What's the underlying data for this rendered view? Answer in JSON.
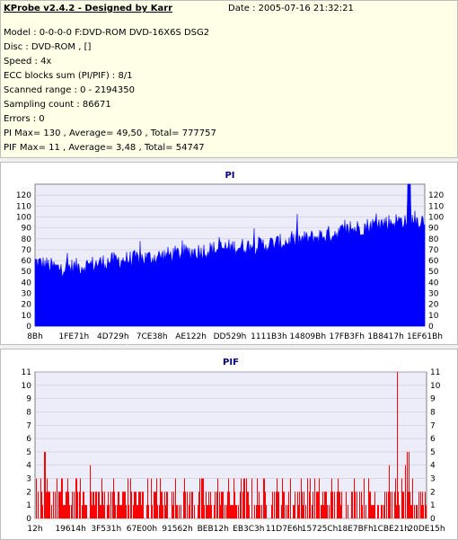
{
  "app": {
    "title": "KProbe v2.4.2 - Designed by Karr",
    "date": "Date : 2005-07-16 21:32:21"
  },
  "info": {
    "model": "Model : 0-0-0-0 F:DVD-ROM DVD-16X6S        DSG2",
    "disc": "Disc : DVD-ROM ,  []",
    "speed": "Speed : 4x",
    "ecc": "ECC blocks sum (PI/PIF) : 8/1",
    "range": "Scanned range : 0 - 2194350",
    "sampling": "Sampling count : 86671",
    "errors": "Errors : 0",
    "pi_stats": "PI Max= 130 , Average= 49,50 , Total= 777757",
    "pif_stats": "PIF Max= 11 , Average= 3,48 , Total= 54747"
  },
  "colors": {
    "pi_fill": "#0000ff",
    "pif_fill": "#ff0000",
    "plot_bg": "#ecedf8",
    "title_color": "#00007f"
  },
  "chart_data": [
    {
      "type": "area",
      "title": "PI",
      "y_ticks": [
        0,
        10,
        20,
        30,
        40,
        50,
        60,
        70,
        80,
        90,
        100,
        110,
        120
      ],
      "ylim": [
        0,
        130
      ],
      "x_tick_labels": [
        "8Bh",
        "1FE71h",
        "4D729h",
        "7CE38h",
        "AE122h",
        "DD529h",
        "1111B3h",
        "14809Bh",
        "17FB3Fh",
        "1B8417h",
        "1EF61Bh"
      ],
      "grid": true,
      "series": [
        {
          "profile_fraction": [
            0,
            0.06,
            0.12,
            0.2,
            0.3,
            0.4,
            0.5,
            0.6,
            0.7,
            0.8,
            0.9,
            0.95,
            1.0
          ],
          "baseline": [
            59,
            53,
            55,
            60,
            63,
            68,
            72,
            75,
            80,
            88,
            95,
            97,
            97
          ],
          "noise_amplitude": 8,
          "max": 130
        }
      ]
    },
    {
      "type": "bar",
      "title": "PIF",
      "y_ticks": [
        0,
        1,
        2,
        3,
        4,
        5,
        6,
        7,
        8,
        9,
        10,
        11
      ],
      "ylim": [
        0,
        11
      ],
      "x_tick_labels": [
        "12h",
        "19614h",
        "3F531h",
        "67E00h",
        "91562h",
        "BEB12h",
        "EB3C3h",
        "11D7E6h",
        "15725Ch",
        "18E7BFh",
        "1CBE21h",
        "20DE15h"
      ],
      "grid": true,
      "series": [
        {
          "typical_values": [
            0,
            1,
            2,
            3
          ],
          "occasional_values": [
            4,
            5
          ],
          "spike": {
            "position_fraction": 0.925,
            "value": 11
          }
        }
      ]
    }
  ]
}
